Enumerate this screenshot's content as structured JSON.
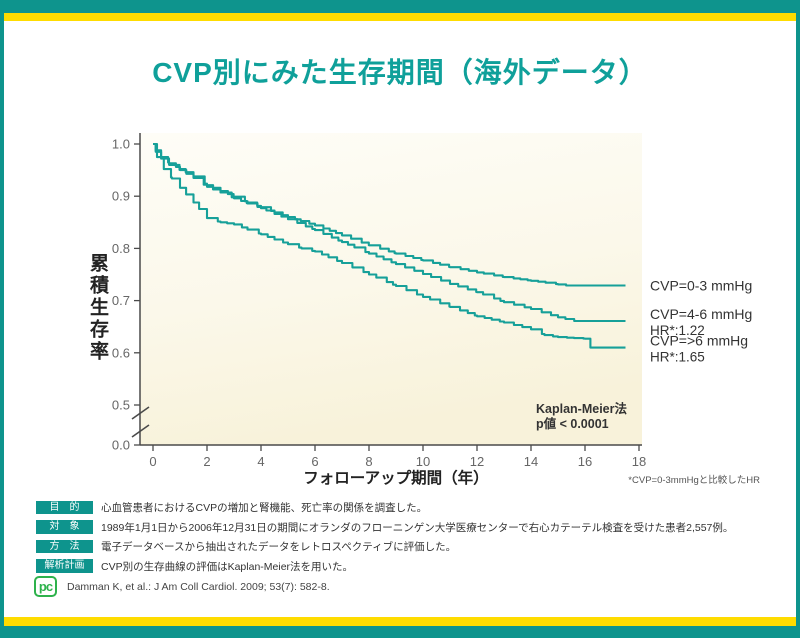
{
  "page": {
    "title": "CVP別にみた生存期間（海外データ）",
    "colors": {
      "frame_teal": "#0E948D",
      "accent_yellow": "#FFDC00",
      "curve_teal": "#16A099",
      "plot_bg": "#F8F3DC"
    }
  },
  "chart_data": {
    "type": "line",
    "subtype": "kaplan-meier-step",
    "title": "CVP別にみた生存期間（海外データ）",
    "xlabel": "フォローアップ期間（年）",
    "ylabel": "累積生存率",
    "x_ticks": [
      0,
      2,
      4,
      6,
      8,
      10,
      12,
      14,
      16,
      18
    ],
    "y_ticks": [
      "1.0",
      "0.9",
      "0.8",
      "0.7",
      "0.6",
      "0.5",
      "0.0"
    ],
    "axis_break_between": [
      "0.5",
      "0.0"
    ],
    "xlim": [
      0,
      18
    ],
    "annotations": {
      "method": "Kaplan-Meier法",
      "pvalue": "p値 < 0.0001"
    },
    "footnote": "*CVP=0-3mmHgと比較したHR",
    "series": [
      {
        "name": "CVP=0-3 mmHg",
        "hr": null,
        "points": [
          [
            0,
            1.0
          ],
          [
            0.1,
            0.988
          ],
          [
            0.3,
            0.975
          ],
          [
            0.6,
            0.963
          ],
          [
            1,
            0.952
          ],
          [
            1.5,
            0.938
          ],
          [
            2,
            0.921
          ],
          [
            2.5,
            0.91
          ],
          [
            3,
            0.899
          ],
          [
            3.5,
            0.888
          ],
          [
            4,
            0.879
          ],
          [
            4.5,
            0.869
          ],
          [
            5,
            0.86
          ],
          [
            6,
            0.844
          ],
          [
            7,
            0.825
          ],
          [
            8,
            0.806
          ],
          [
            9,
            0.79
          ],
          [
            10,
            0.777
          ],
          [
            11,
            0.764
          ],
          [
            12,
            0.754
          ],
          [
            13,
            0.745
          ],
          [
            14,
            0.738
          ],
          [
            15,
            0.731
          ],
          [
            15.3,
            0.729
          ],
          [
            17.5,
            0.729
          ]
        ]
      },
      {
        "name": "CVP=4-6 mmHg",
        "hr": "HR*:1.22",
        "points": [
          [
            0,
            1.0
          ],
          [
            0.1,
            0.985
          ],
          [
            0.3,
            0.972
          ],
          [
            0.6,
            0.96
          ],
          [
            1,
            0.95
          ],
          [
            1.5,
            0.935
          ],
          [
            2,
            0.918
          ],
          [
            2.5,
            0.907
          ],
          [
            3,
            0.896
          ],
          [
            3.5,
            0.886
          ],
          [
            4,
            0.877
          ],
          [
            4.5,
            0.866
          ],
          [
            5,
            0.856
          ],
          [
            6,
            0.835
          ],
          [
            7,
            0.812
          ],
          [
            8,
            0.79
          ],
          [
            9,
            0.77
          ],
          [
            10,
            0.751
          ],
          [
            11,
            0.732
          ],
          [
            12,
            0.716
          ],
          [
            13,
            0.697
          ],
          [
            14,
            0.684
          ],
          [
            15,
            0.668
          ],
          [
            15.6,
            0.661
          ],
          [
            17.5,
            0.661
          ]
        ]
      },
      {
        "name": "CVP=>6 mmHg",
        "hr": "HR*:1.65",
        "points": [
          [
            0,
            1.0
          ],
          [
            0.15,
            0.975
          ],
          [
            0.4,
            0.952
          ],
          [
            0.7,
            0.934
          ],
          [
            1,
            0.916
          ],
          [
            1.5,
            0.888
          ],
          [
            2,
            0.858
          ],
          [
            2.5,
            0.85
          ],
          [
            3,
            0.846
          ],
          [
            3.5,
            0.836
          ],
          [
            4,
            0.827
          ],
          [
            4.5,
            0.817
          ],
          [
            5,
            0.808
          ],
          [
            5.5,
            0.8
          ],
          [
            6,
            0.794
          ],
          [
            6.5,
            0.783
          ],
          [
            7,
            0.772
          ],
          [
            8,
            0.75
          ],
          [
            9,
            0.728
          ],
          [
            10,
            0.707
          ],
          [
            11,
            0.688
          ],
          [
            12,
            0.67
          ],
          [
            13,
            0.658
          ],
          [
            14,
            0.645
          ],
          [
            14.5,
            0.634
          ],
          [
            15,
            0.63
          ],
          [
            16,
            0.627
          ],
          [
            16.2,
            0.61
          ],
          [
            17.5,
            0.61
          ]
        ]
      }
    ]
  },
  "footer": {
    "rows": [
      {
        "tag": "目　的",
        "text": "心血管患者におけるCVPの増加と腎機能、死亡率の関係を調査した。"
      },
      {
        "tag": "対　象",
        "text": "1989年1月1日から2006年12月31日の期間にオランダのフローニンゲン大学医療センターで右心カテーテル検査を受けた患者2,557例。"
      },
      {
        "tag": "方　法",
        "text": "電子データベースから抽出されたデータをレトロスペクティブに評価した。"
      },
      {
        "tag": "解析計画",
        "text": "CVP別の生存曲線の評価はKaplan-Meier法を用いた。"
      }
    ],
    "citation": "Damman K, et al.: J Am Coll Cardiol. 2009; 53(7): 582-8.",
    "logo_text": "pc"
  }
}
